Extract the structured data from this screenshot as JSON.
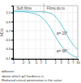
{
  "chart_data": {
    "type": "line",
    "log": "x",
    "grid": true,
    "ylabel": "hC/e",
    "xlim": [
      0.1,
      10
    ],
    "ylim": [
      0.08,
      1.25
    ],
    "xticks": [
      {
        "value": 0.1,
        "label": ".1"
      },
      {
        "value": 0.2,
        "label": ".2"
      },
      {
        "value": 0.3,
        "label": ".3"
      },
      {
        "value": 0.5,
        "label": ".5"
      },
      {
        "value": 0.7,
        "label": ".7"
      },
      1,
      2,
      3,
      5,
      7,
      10
    ],
    "yticks": [
      0.1,
      0.3,
      0.5,
      0.7,
      0.9,
      1.1
    ],
    "series": [
      {
        "color": "#6bc8d8",
        "x": [
          0.1,
          0.15,
          0.2,
          0.3,
          0.5,
          0.7,
          1.0,
          1.5,
          2.0,
          3.0,
          4.0,
          5.0,
          7.0,
          10.0
        ],
        "values": [
          1.13,
          1.13,
          1.13,
          1.13,
          1.12,
          1.12,
          1.11,
          1.08,
          1.02,
          0.86,
          0.7,
          0.56,
          0.4,
          0.28
        ]
      },
      {
        "color": "#6bc8d8",
        "x": [
          0.1,
          0.15,
          0.2,
          0.3,
          0.5,
          0.7,
          1.0,
          1.5,
          2.0,
          3.0,
          4.0,
          5.0,
          7.0,
          10.0
        ],
        "values": [
          1.13,
          1.12,
          1.12,
          1.1,
          1.07,
          1.02,
          0.92,
          0.74,
          0.58,
          0.38,
          0.28,
          0.22,
          0.15,
          0.11
        ]
      }
    ],
    "vlines": [
      0.9
    ],
    "annotations": [
      {
        "text": "Soft films",
        "x": 0.13,
        "y": 1.17
      },
      {
        "text": "Films du ro",
        "x": 1.1,
        "y": 1.17
      },
      {
        "text": "φ= 20°",
        "x": 2.2,
        "y": 0.62
      },
      {
        "text": "φ= 68°",
        "x": 2.2,
        "y": 0.22
      }
    ],
    "caption": [
      "Reduced critical penetration is the value",
      "above which φ2 hardness is",
      "different"
    ]
  }
}
